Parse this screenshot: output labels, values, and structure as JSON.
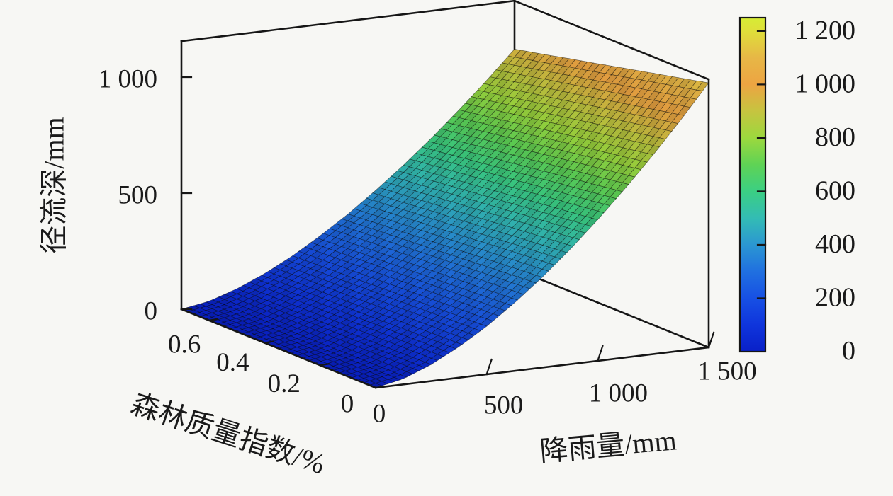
{
  "figure": {
    "background": "#f7f7f4",
    "line_color": "#161616",
    "text_color": "#1a1a1a"
  },
  "chart_data": {
    "type": "surface",
    "title": "",
    "x_axis": {
      "label": "降雨量/mm",
      "range": [
        0,
        1500
      ],
      "ticks": [
        {
          "value": 0,
          "label": "0"
        },
        {
          "value": 500,
          "label": "500"
        },
        {
          "value": 1000,
          "label": "1 000"
        },
        {
          "value": 1500,
          "label": "1 500"
        }
      ]
    },
    "y_axis": {
      "label": "森林质量指数/%",
      "range": [
        0,
        0.7
      ],
      "ticks": [
        {
          "value": 0,
          "label": "0"
        },
        {
          "value": 0.2,
          "label": "0.2"
        },
        {
          "value": 0.4,
          "label": "0.4"
        },
        {
          "value": 0.6,
          "label": "0.6"
        }
      ]
    },
    "z_axis": {
      "label": "径流深/mm",
      "range": [
        0,
        1155
      ],
      "ticks": [
        {
          "value": 0,
          "label": "0"
        },
        {
          "value": 500,
          "label": "500"
        },
        {
          "value": 1000,
          "label": "1 000"
        }
      ]
    },
    "colorbar": {
      "range": [
        0,
        1250
      ],
      "ticks": [
        {
          "value": 0,
          "label": "0"
        },
        {
          "value": 200,
          "label": "200"
        },
        {
          "value": 400,
          "label": "400"
        },
        {
          "value": 600,
          "label": "600"
        },
        {
          "value": 800,
          "label": "800"
        },
        {
          "value": 1000,
          "label": "1 000"
        },
        {
          "value": 1200,
          "label": "1 200"
        }
      ],
      "stops": [
        {
          "v": 0,
          "c": "#0920c8"
        },
        {
          "v": 100,
          "c": "#0f35dc"
        },
        {
          "v": 200,
          "c": "#1750e4"
        },
        {
          "v": 300,
          "c": "#2070e0"
        },
        {
          "v": 400,
          "c": "#2b97d2"
        },
        {
          "v": 500,
          "c": "#33bcb4"
        },
        {
          "v": 600,
          "c": "#3bcf83"
        },
        {
          "v": 700,
          "c": "#5fd355"
        },
        {
          "v": 800,
          "c": "#9cd83e"
        },
        {
          "v": 900,
          "c": "#c6c440"
        },
        {
          "v": 1000,
          "c": "#eda442"
        },
        {
          "v": 1100,
          "c": "#e7b746"
        },
        {
          "v": 1200,
          "c": "#dfdf3a"
        },
        {
          "v": 1250,
          "c": "#d6ec35"
        }
      ]
    },
    "surface": {
      "x": [
        0,
        125,
        250,
        375,
        500,
        625,
        750,
        875,
        1000,
        1125,
        1250,
        1375,
        1500
      ],
      "quality_index": [
        0,
        0.1,
        0.2,
        0.3,
        0.4,
        0.5,
        0.6,
        0.7
      ],
      "runoff_depth": [
        [
          0,
          24,
          71,
          133,
          207,
          293,
          389,
          494,
          608,
          730,
          859,
          996,
          1140
        ],
        [
          0,
          24,
          69,
          130,
          202,
          286,
          380,
          482,
          593,
          712,
          838,
          972,
          1112
        ],
        [
          0,
          23,
          67,
          127,
          197,
          279,
          371,
          471,
          579,
          695,
          818,
          948,
          1085
        ],
        [
          0,
          22,
          66,
          123,
          192,
          272,
          361,
          458,
          564,
          677,
          797,
          924,
          1057
        ],
        [
          0,
          22,
          64,
          120,
          187,
          265,
          351,
          446,
          549,
          659,
          776,
          899,
          1029
        ],
        [
          0,
          21,
          62,
          117,
          182,
          258,
          342,
          435,
          534,
          642,
          755,
          876,
          1002
        ],
        [
          0,
          21,
          61,
          114,
          177,
          251,
          333,
          422,
          520,
          624,
          734,
          851,
          974
        ],
        [
          0,
          20,
          59,
          110,
          172,
          244,
          323,
          411,
          505,
          606,
          714,
          827,
          947
        ]
      ]
    }
  }
}
